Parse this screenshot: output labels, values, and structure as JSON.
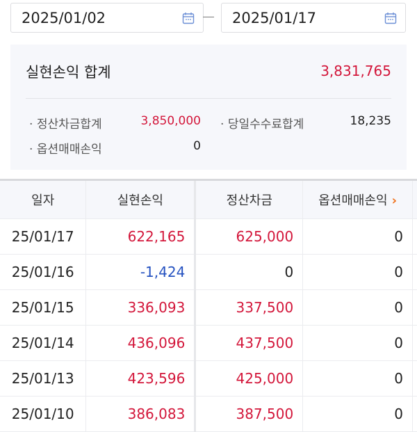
{
  "date_range": {
    "start": "2025/01/02",
    "end": "2025/01/17",
    "separator_icon": "dash",
    "calendar_icon": "calendar-icon"
  },
  "summary": {
    "title": "실현손익 합계",
    "total": "3,831,765",
    "items": [
      {
        "label": "정산차금합계",
        "value": "3,850,000"
      },
      {
        "label": "당일수수료합계",
        "value": "18,235"
      },
      {
        "label": "옵션매매손익",
        "value": "0"
      }
    ]
  },
  "colors": {
    "positive": "#d3163a",
    "negative": "#2451c0",
    "accent": "#f07019"
  },
  "table": {
    "headers": [
      "일자",
      "실현손익",
      "정산차금",
      "옵션매매손익"
    ],
    "more_icon": "chevron-right-icon",
    "rows": [
      {
        "date": "25/01/17",
        "pl": "622,165",
        "settle": "625,000",
        "option": "0",
        "pl_sign": "red",
        "settle_sign": "red"
      },
      {
        "date": "25/01/16",
        "pl": "-1,424",
        "settle": "0",
        "option": "0",
        "pl_sign": "blue",
        "settle_sign": "black"
      },
      {
        "date": "25/01/15",
        "pl": "336,093",
        "settle": "337,500",
        "option": "0",
        "pl_sign": "red",
        "settle_sign": "red"
      },
      {
        "date": "25/01/14",
        "pl": "436,096",
        "settle": "437,500",
        "option": "0",
        "pl_sign": "red",
        "settle_sign": "red"
      },
      {
        "date": "25/01/13",
        "pl": "423,596",
        "settle": "425,000",
        "option": "0",
        "pl_sign": "red",
        "settle_sign": "red"
      },
      {
        "date": "25/01/10",
        "pl": "386,083",
        "settle": "387,500",
        "option": "0",
        "pl_sign": "red",
        "settle_sign": "red"
      }
    ]
  }
}
